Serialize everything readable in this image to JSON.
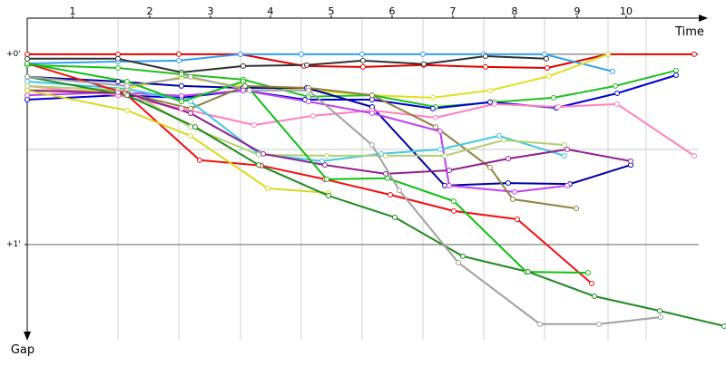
{
  "chart_data": {
    "type": "line",
    "x_label": "Time",
    "y_label": "Gap",
    "xlim": [
      0,
      750
    ],
    "ylim": [
      -11.4,
      90
    ],
    "xticks": [
      {
        "value": 50,
        "label": "1"
      },
      {
        "value": 135,
        "label": "2"
      },
      {
        "value": 202,
        "label": "3"
      },
      {
        "value": 268,
        "label": "4"
      },
      {
        "value": 335,
        "label": "5"
      },
      {
        "value": 402,
        "label": "6"
      },
      {
        "value": 469,
        "label": "7"
      },
      {
        "value": 537,
        "label": "8"
      },
      {
        "value": 606,
        "label": "9"
      },
      {
        "value": 660,
        "label": "10"
      }
    ],
    "grid_x": [
      100,
      167,
      235,
      302,
      369,
      436,
      503,
      570,
      640,
      682
    ],
    "yticks": [
      {
        "value": 0,
        "label": "+0'"
      },
      {
        "value": 60,
        "label": "+1'"
      }
    ],
    "grid_y": [
      0,
      30,
      60
    ],
    "y_inverted": true,
    "markers": true,
    "series": [
      {
        "color": "#e00000",
        "x": [
          0,
          100,
          167,
          235,
          305,
          370,
          437,
          505,
          573,
          640,
          735
        ],
        "values": [
          0,
          0,
          0,
          0,
          3.7,
          4,
          3.4,
          4,
          4.3,
          0,
          0
        ]
      },
      {
        "color": "#30a0f0",
        "x": [
          0,
          100,
          167,
          235,
          302,
          369,
          436,
          503,
          570,
          645
        ],
        "values": [
          2.9,
          2.3,
          2,
          0,
          0,
          0,
          0,
          0,
          0,
          5.4
        ]
      },
      {
        "color": "#303030",
        "x": [
          0,
          100,
          170,
          238,
          308,
          370,
          437,
          505,
          572
        ],
        "values": [
          1.4,
          1.4,
          5.7,
          3.7,
          3.4,
          2,
          3.1,
          0.6,
          1.4
        ]
      },
      {
        "color": "#e0e020",
        "x": [
          0,
          100,
          170,
          238,
          310,
          380,
          447,
          510,
          575,
          640
        ],
        "values": [
          11.4,
          11.4,
          7.1,
          10.3,
          11.4,
          12.9,
          13.7,
          11.4,
          6.9,
          0
        ]
      },
      {
        "color": "#20c020",
        "x": [
          0,
          100,
          170,
          238,
          310,
          380,
          450,
          515,
          580,
          648,
          715
        ],
        "values": [
          3.4,
          4.3,
          6.3,
          8,
          13.4,
          12.9,
          16.6,
          15.1,
          13.7,
          10,
          5.1
        ]
      },
      {
        "color": "#0000d0",
        "x": [
          0,
          100,
          170,
          238,
          306,
          380,
          447,
          510,
          583,
          650,
          715
        ],
        "values": [
          14.3,
          12.9,
          13.7,
          11.4,
          14.3,
          14.3,
          17.1,
          15.1,
          16.9,
          12.3,
          6.6
        ]
      },
      {
        "color": "#0000a0",
        "x": [
          0,
          100,
          170,
          238,
          308,
          380,
          460,
          530,
          598,
          665
        ],
        "values": [
          7.1,
          8.6,
          10,
          10.6,
          10.6,
          16.6,
          41.4,
          40.6,
          40.9,
          34.9
        ]
      },
      {
        "color": "#ff80c0",
        "x": [
          0,
          100,
          170,
          250,
          315,
          380,
          450,
          515,
          585,
          650,
          735
        ],
        "values": [
          10,
          12.9,
          17.1,
          22.3,
          19.4,
          17.7,
          20,
          15.7,
          16.6,
          15.7,
          32
        ]
      },
      {
        "color": "#c040f0",
        "x": [
          0,
          100,
          170,
          238,
          310,
          380,
          455,
          465,
          537,
          595
        ],
        "values": [
          12.9,
          12,
          13.1,
          11.4,
          14.9,
          18.6,
          24.3,
          41.4,
          43.4,
          41.4
        ]
      },
      {
        "color": "#908040",
        "x": [
          0,
          110,
          180,
          240,
          310,
          380,
          450,
          510,
          535,
          605
        ],
        "values": [
          11.4,
          12.3,
          17.1,
          10,
          10.6,
          12.9,
          22.9,
          35.7,
          45.7,
          48.6
        ]
      },
      {
        "color": "#40c8e0",
        "x": [
          0,
          110,
          180,
          255,
          325,
          390,
          455,
          520,
          592
        ],
        "values": [
          8.6,
          10.9,
          14.9,
          31.4,
          33.7,
          31.4,
          30,
          25.7,
          32
        ]
      },
      {
        "color": "#b0d070",
        "x": [
          0,
          110,
          180,
          255,
          330,
          395,
          460,
          525,
          592
        ],
        "values": [
          10,
          11.4,
          22.9,
          31.7,
          32,
          32,
          32,
          27.1,
          28.6
        ]
      },
      {
        "color": "#902090",
        "x": [
          0,
          110,
          180,
          260,
          328,
          395,
          465,
          530,
          595,
          665
        ],
        "values": [
          11.4,
          12.3,
          18.6,
          31.4,
          34.9,
          37.7,
          36.6,
          32.9,
          30,
          33.7
        ]
      },
      {
        "color": "#f01010",
        "x": [
          0,
          108,
          190,
          258,
          328,
          400,
          470,
          540,
          622
        ],
        "values": [
          2.9,
          12.3,
          33.4,
          35.1,
          39.4,
          44.3,
          49.4,
          52,
          72.3
        ]
      },
      {
        "color": "#d8d820",
        "x": [
          0,
          110,
          180,
          265,
          332
        ],
        "values": [
          11.4,
          17.7,
          25.7,
          42.3,
          43.7
        ]
      },
      {
        "color": "#10c010",
        "x": [
          0,
          110,
          170,
          238,
          330,
          397,
          470,
          550,
          618
        ],
        "values": [
          2.9,
          8.6,
          14.9,
          8.6,
          39.4,
          39.1,
          46.3,
          68.6,
          68.9
        ]
      },
      {
        "color": "#208a20",
        "x": [
          0,
          110,
          185,
          255,
          332,
          405,
          480,
          552,
          625,
          697,
          768
        ],
        "values": [
          7.1,
          12.9,
          22.9,
          34.9,
          44.6,
          51.4,
          63.7,
          68.6,
          76.3,
          80.9,
          85.7
        ]
      },
      {
        "color": "#a0a0a0",
        "x": [
          0,
          110,
          180,
          245,
          310,
          380,
          410,
          475,
          565,
          630,
          698
        ],
        "values": [
          7.1,
          10,
          7.1,
          11.4,
          11.4,
          28.6,
          42.9,
          65.7,
          85.1,
          85.1,
          82.9
        ]
      }
    ]
  }
}
